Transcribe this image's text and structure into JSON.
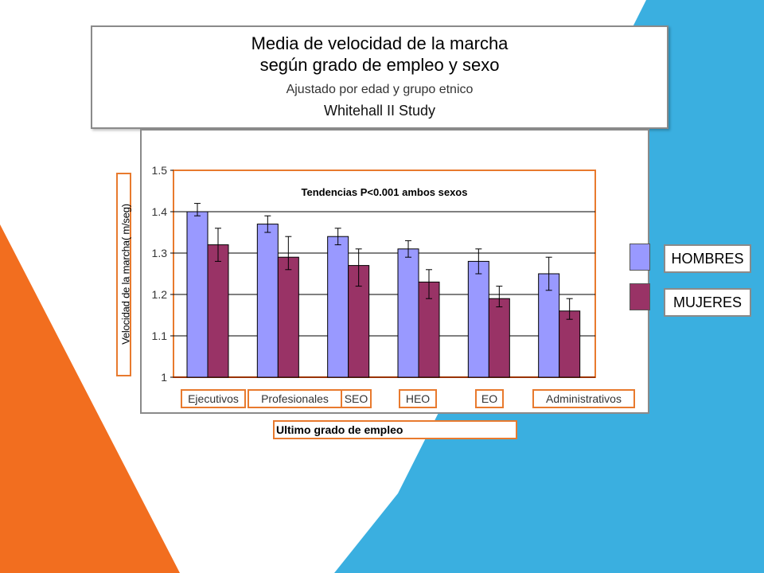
{
  "title": {
    "line1": "Media de velocidad de la marcha",
    "line2": "según grado de empleo y sexo",
    "subtitle": "Ajustado por edad y grupo etnico",
    "study": "Whitehall II Study"
  },
  "legend": {
    "items": [
      {
        "label": "HOMBRES",
        "color": "#9999ff"
      },
      {
        "label": "MUJERES",
        "color": "#993366"
      }
    ]
  },
  "chart_data": {
    "type": "bar",
    "title": "",
    "annotation": "Tendencias P<0.001 ambos sexos",
    "ylabel": "Velocidad de la marcha( m/seg)",
    "xlabel": "Ultimo grado de empleo",
    "ylim": [
      1,
      1.5
    ],
    "yticks": [
      "1",
      "1.1",
      "1.2",
      "1.3",
      "1.4",
      "1.5"
    ],
    "ytick_values": [
      1,
      1.1,
      1.2,
      1.3,
      1.4,
      1.5
    ],
    "grid": true,
    "categories": [
      "Ejecutivos",
      "Profesionales",
      "SEO",
      "HEO",
      "EO",
      "Administrativos"
    ],
    "series": [
      {
        "name": "HOMBRES",
        "color": "#9999ff",
        "values": [
          1.4,
          1.37,
          1.34,
          1.31,
          1.28,
          1.25
        ],
        "err_low": [
          1.39,
          1.35,
          1.32,
          1.29,
          1.25,
          1.21
        ],
        "err_high": [
          1.42,
          1.39,
          1.36,
          1.33,
          1.31,
          1.29
        ]
      },
      {
        "name": "MUJERES",
        "color": "#993366",
        "values": [
          1.32,
          1.29,
          1.27,
          1.23,
          1.19,
          1.16
        ],
        "err_low": [
          1.28,
          1.26,
          1.22,
          1.19,
          1.17,
          1.14
        ],
        "err_high": [
          1.36,
          1.34,
          1.31,
          1.26,
          1.22,
          1.19
        ]
      }
    ]
  }
}
